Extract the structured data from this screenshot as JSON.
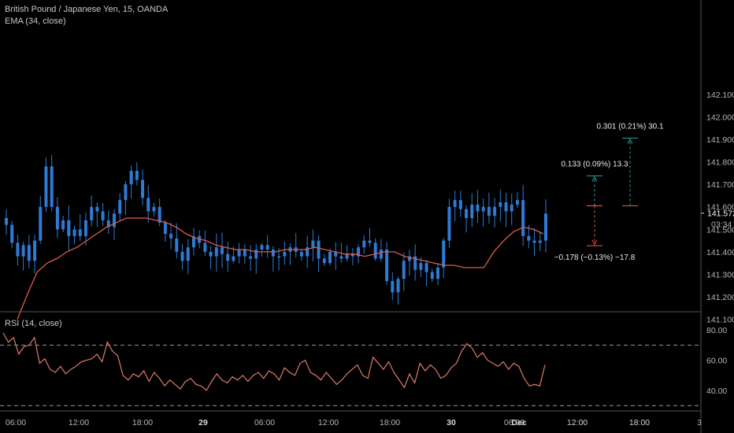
{
  "legend": {
    "instrument": "British Pound / Japanese Yen, 15, OANDA",
    "ema": "EMA (34, close)",
    "rsi": "RSI (14, close)"
  },
  "price_axis": {
    "ticks": [
      "142.100",
      "142.000",
      "141.900",
      "141.800",
      "141.700",
      "141.600",
      "141.500",
      "141.400",
      "141.300",
      "141.200",
      "141.100"
    ],
    "last_price": "141.572",
    "countdown": "03:34"
  },
  "rsi_axis": {
    "ticks": [
      "80.00",
      "60.00",
      "40.00"
    ],
    "levels": [
      70,
      30
    ]
  },
  "time_axis": {
    "ticks": [
      "06:00",
      "12:00",
      "18:00",
      "29",
      "06:00",
      "12:00",
      "18:00",
      "30",
      "06:00",
      "12:00",
      "18:00",
      "Dec",
      "12:00",
      "18:00",
      "3"
    ]
  },
  "measurements": [
    {
      "label": "0.301 (0.21%) 30.1",
      "from": 141.605,
      "to": 141.906,
      "color": "#26a69a"
    },
    {
      "label": "0.133 (0.09%) 13.3",
      "from": 141.605,
      "to": 141.738,
      "color": "#26a69a"
    },
    {
      "label": "−0.178 (−0.13%) −17.8",
      "from": 141.605,
      "to": 141.427,
      "color": "#ef5350"
    }
  ],
  "colors": {
    "candle": "#2e7bd6",
    "ema": "#e05a4a",
    "rsi": "#e07a6a",
    "grid_separator": "#555555",
    "axis_text": "#b2b5be",
    "measure_up": "#26a69a",
    "measure_down": "#ef5350"
  },
  "chart_data": [
    {
      "type": "candlestick",
      "title": "British Pound / Japanese Yen, 15, OANDA",
      "ylim": [
        141.05,
        142.15
      ],
      "series": [
        {
          "name": "GBPJPY 15m close",
          "values": [
            141.52,
            141.44,
            141.38,
            141.43,
            141.36,
            141.45,
            141.6,
            141.78,
            141.6,
            141.5,
            141.54,
            141.47,
            141.5,
            141.47,
            141.54,
            141.6,
            141.58,
            141.54,
            141.51,
            141.57,
            141.63,
            141.7,
            141.76,
            141.72,
            141.64,
            141.58,
            141.6,
            141.53,
            141.48,
            141.46,
            141.4,
            141.36,
            141.42,
            141.47,
            141.44,
            141.4,
            141.38,
            141.42,
            141.39,
            141.36,
            141.38,
            141.41,
            141.38,
            141.37,
            141.41,
            141.43,
            141.41,
            141.38,
            141.38,
            141.4,
            141.42,
            141.4,
            141.38,
            141.42,
            141.45,
            141.37,
            141.35,
            141.4,
            141.38,
            141.37,
            141.39,
            141.38,
            141.42,
            141.45,
            141.44,
            141.37,
            141.41,
            141.27,
            141.22,
            141.28,
            141.36,
            141.38,
            141.32,
            141.35,
            141.31,
            141.28,
            141.33,
            141.45,
            141.6,
            141.63,
            141.59,
            141.55,
            141.61,
            141.58,
            141.6,
            141.56,
            141.6,
            141.62,
            141.58,
            141.61,
            141.63,
            141.47,
            141.45,
            141.44,
            141.45,
            141.57
          ]
        },
        {
          "name": "EMA (34, close)",
          "values": [
            141.1,
            141.21,
            141.31,
            141.35,
            141.37,
            141.4,
            141.42,
            141.45,
            141.48,
            141.51,
            141.53,
            141.55,
            141.55,
            141.55,
            141.54,
            141.53,
            141.51,
            141.48,
            141.46,
            141.45,
            141.43,
            141.42,
            141.41,
            141.41,
            141.4,
            141.4,
            141.4,
            141.41,
            141.41,
            141.41,
            141.42,
            141.41,
            141.4,
            141.39,
            141.39,
            141.38,
            141.39,
            141.4,
            141.4,
            141.38,
            141.37,
            141.36,
            141.35,
            141.34,
            141.34,
            141.33,
            141.33,
            141.33,
            141.4,
            141.45,
            141.49,
            141.51,
            141.5,
            141.48
          ]
        }
      ]
    },
    {
      "type": "line",
      "title": "RSI (14, close)",
      "ylim": [
        25,
        85
      ],
      "series": [
        {
          "name": "RSI (14, close)",
          "values": [
            78,
            72,
            75,
            64,
            69,
            70,
            75,
            58,
            61,
            54,
            52,
            56,
            51,
            54,
            56,
            59,
            60,
            61,
            64,
            59,
            72,
            66,
            63,
            50,
            47,
            51,
            49,
            53,
            46,
            52,
            48,
            43,
            47,
            44,
            41,
            46,
            48,
            44,
            43,
            40,
            46,
            51,
            47,
            45,
            49,
            47,
            50,
            46,
            50,
            52,
            48,
            53,
            51,
            47,
            55,
            52,
            50,
            58,
            60,
            52,
            50,
            47,
            52,
            48,
            44,
            47,
            51,
            54,
            57,
            50,
            48,
            62,
            58,
            54,
            59,
            52,
            47,
            42,
            51,
            45,
            58,
            53,
            57,
            54,
            48,
            50,
            55,
            58,
            66,
            71,
            68,
            62,
            65,
            60,
            58,
            56,
            59,
            54,
            58,
            56,
            48,
            43,
            44,
            43,
            57
          ]
        }
      ]
    }
  ]
}
